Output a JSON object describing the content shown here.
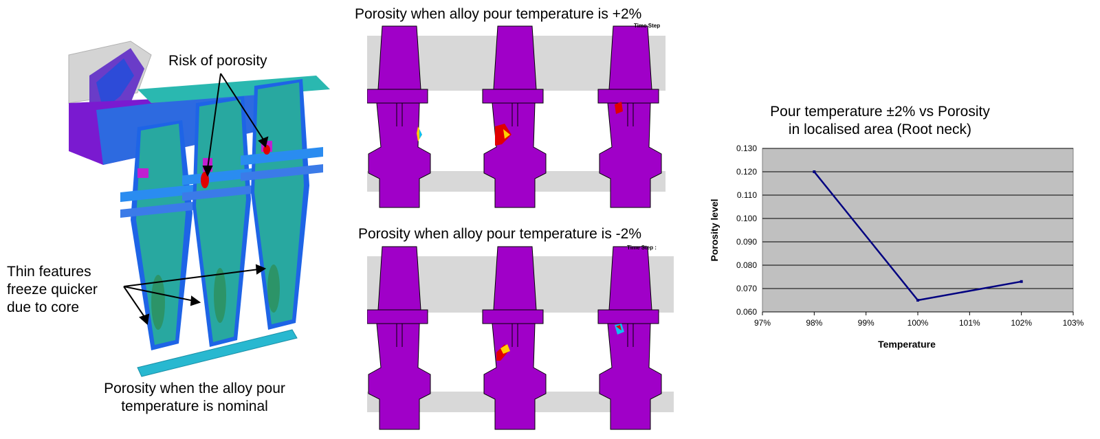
{
  "left_panel": {
    "risk_label": "Risk of porosity",
    "thin_label_line1": "Thin features",
    "thin_label_line2": "freeze quicker",
    "thin_label_line3": "due to core",
    "caption_line1": "Porosity when the alloy pour",
    "caption_line2": "temperature is nominal"
  },
  "middle_panel": {
    "top_title": "Porosity when alloy pour temperature is +2%",
    "bottom_title": "Porosity when alloy pour temperature is -2%",
    "top_timestep": "Time Step",
    "bottom_timestep": "Time Step : "
  },
  "colors": {
    "magenta": "#a000c8",
    "teal": "#20b0a8",
    "blue": "#1e64e6",
    "porosity_red": "#e00000",
    "grey": "#d8d8d8",
    "plot_bg": "#c0c0c0",
    "line": "#000080"
  },
  "chart_data": {
    "type": "line",
    "title_line1": "Pour temperature ±2% vs Porosity",
    "title_line2": "in localised area (Root neck)",
    "xlabel": "Temperature",
    "ylabel": "Porosity level",
    "x_ticks": [
      "97%",
      "98%",
      "99%",
      "100%",
      "101%",
      "102%",
      "103%"
    ],
    "y_ticks": [
      "0.060",
      "0.070",
      "0.080",
      "0.090",
      "0.100",
      "0.110",
      "0.120",
      "0.130"
    ],
    "xlim": [
      97,
      103
    ],
    "ylim": [
      0.06,
      0.13
    ],
    "grid": true,
    "series": [
      {
        "x": [
          98,
          100,
          102
        ],
        "y": [
          0.12,
          0.065,
          0.073
        ]
      }
    ]
  }
}
